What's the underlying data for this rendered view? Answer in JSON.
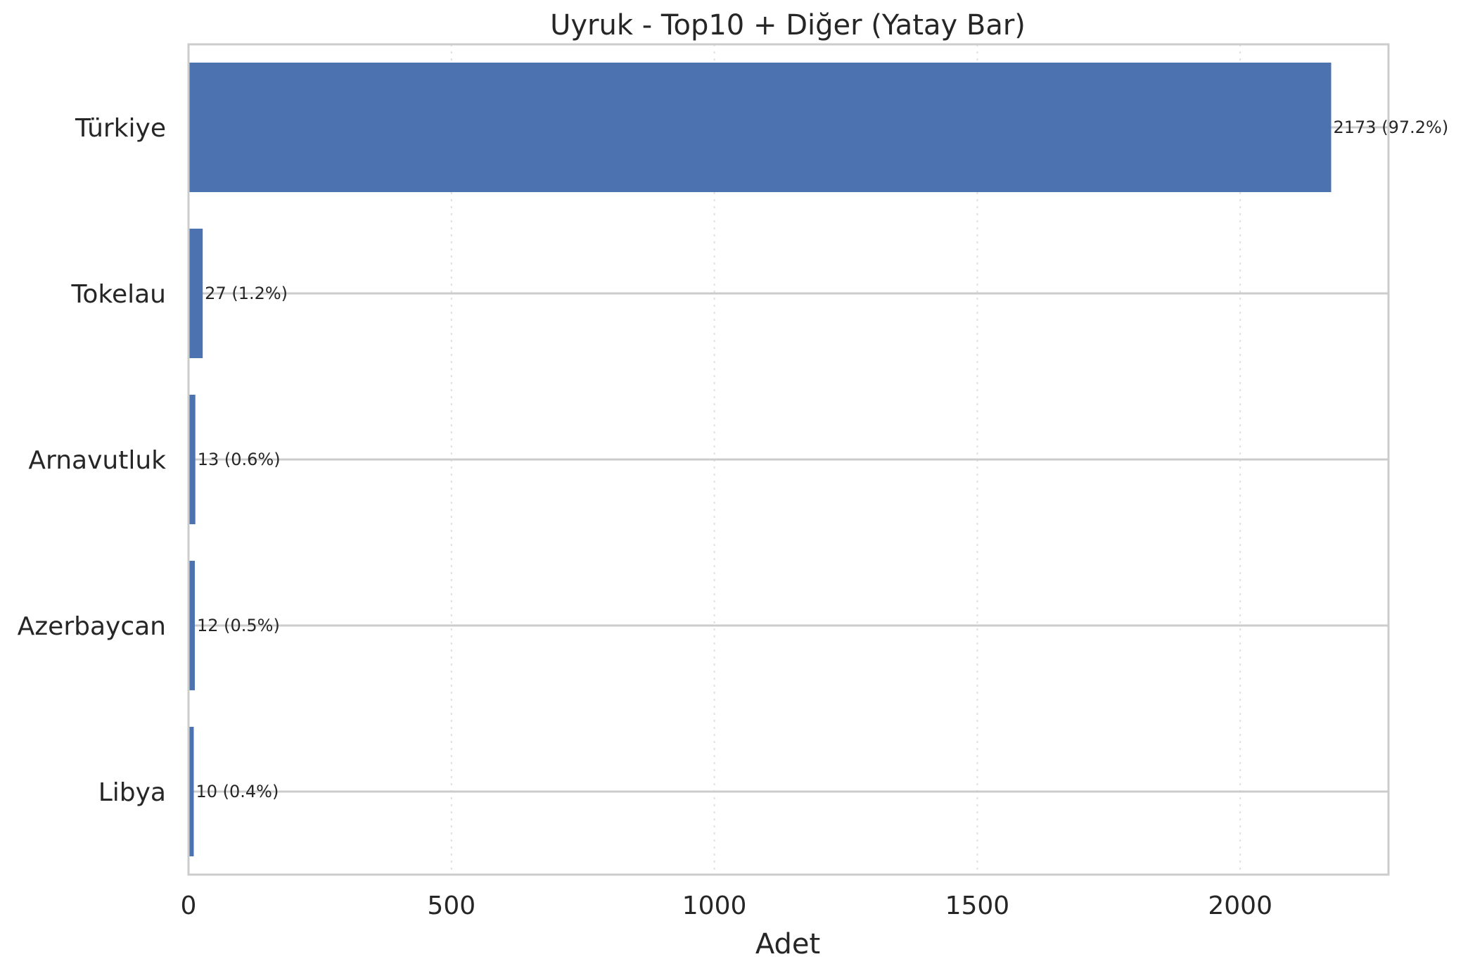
{
  "chart_data": {
    "type": "bar",
    "orientation": "horizontal",
    "title": "Uyruk - Top10 + Diğer (Yatay Bar)",
    "xlabel": "Adet",
    "ylabel": "",
    "categories": [
      "Türkiye",
      "Tokelau",
      "Arnavutluk",
      "Azerbaycan",
      "Libya"
    ],
    "values": [
      2173,
      27,
      13,
      12,
      10
    ],
    "data_labels": [
      "2173  (97.2%)",
      "27  (1.2%)",
      "13  (0.6%)",
      "12  (0.5%)",
      "10  (0.4%)"
    ],
    "xlim": [
      0,
      2282
    ],
    "xticks": [
      0,
      500,
      1000,
      1500,
      2000
    ],
    "xtick_labels": [
      "0",
      "500",
      "1000",
      "1500",
      "2000"
    ],
    "grid": "on",
    "bar_color": "#4c72b0",
    "grid_color": "#cccccc"
  }
}
